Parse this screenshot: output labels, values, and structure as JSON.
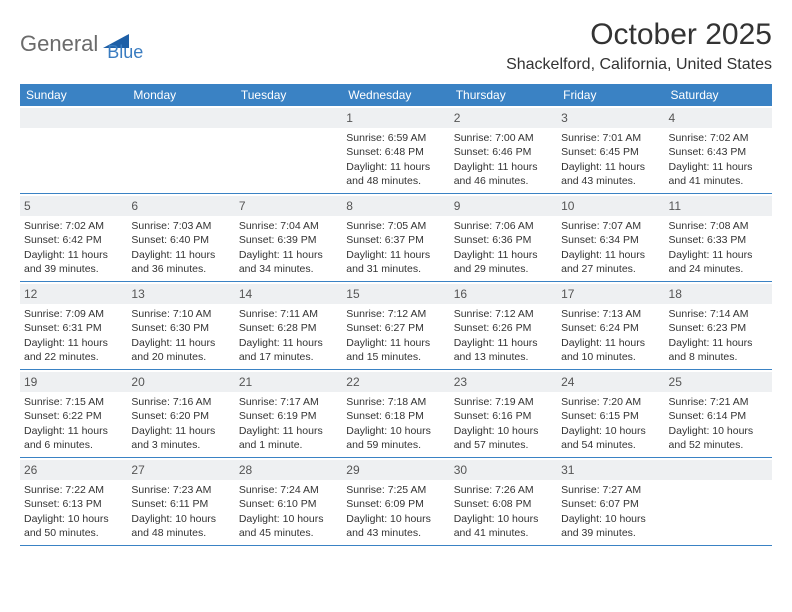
{
  "logo": {
    "text1": "General",
    "text2": "Blue"
  },
  "header": {
    "month_title": "October 2025",
    "location": "Shackelford, California, United States"
  },
  "colors": {
    "header_bg": "#3a82c4",
    "header_fg": "#ffffff",
    "day_num_bg": "#eef0f2",
    "border": "#3a82c4",
    "logo_gray": "#6b6b6b",
    "logo_blue": "#3a7cc0"
  },
  "days_of_week": [
    "Sunday",
    "Monday",
    "Tuesday",
    "Wednesday",
    "Thursday",
    "Friday",
    "Saturday"
  ],
  "weeks": [
    [
      null,
      null,
      null,
      {
        "n": "1",
        "sunrise": "6:59 AM",
        "sunset": "6:48 PM",
        "daylight": "11 hours and 48 minutes."
      },
      {
        "n": "2",
        "sunrise": "7:00 AM",
        "sunset": "6:46 PM",
        "daylight": "11 hours and 46 minutes."
      },
      {
        "n": "3",
        "sunrise": "7:01 AM",
        "sunset": "6:45 PM",
        "daylight": "11 hours and 43 minutes."
      },
      {
        "n": "4",
        "sunrise": "7:02 AM",
        "sunset": "6:43 PM",
        "daylight": "11 hours and 41 minutes."
      }
    ],
    [
      {
        "n": "5",
        "sunrise": "7:02 AM",
        "sunset": "6:42 PM",
        "daylight": "11 hours and 39 minutes."
      },
      {
        "n": "6",
        "sunrise": "7:03 AM",
        "sunset": "6:40 PM",
        "daylight": "11 hours and 36 minutes."
      },
      {
        "n": "7",
        "sunrise": "7:04 AM",
        "sunset": "6:39 PM",
        "daylight": "11 hours and 34 minutes."
      },
      {
        "n": "8",
        "sunrise": "7:05 AM",
        "sunset": "6:37 PM",
        "daylight": "11 hours and 31 minutes."
      },
      {
        "n": "9",
        "sunrise": "7:06 AM",
        "sunset": "6:36 PM",
        "daylight": "11 hours and 29 minutes."
      },
      {
        "n": "10",
        "sunrise": "7:07 AM",
        "sunset": "6:34 PM",
        "daylight": "11 hours and 27 minutes."
      },
      {
        "n": "11",
        "sunrise": "7:08 AM",
        "sunset": "6:33 PM",
        "daylight": "11 hours and 24 minutes."
      }
    ],
    [
      {
        "n": "12",
        "sunrise": "7:09 AM",
        "sunset": "6:31 PM",
        "daylight": "11 hours and 22 minutes."
      },
      {
        "n": "13",
        "sunrise": "7:10 AM",
        "sunset": "6:30 PM",
        "daylight": "11 hours and 20 minutes."
      },
      {
        "n": "14",
        "sunrise": "7:11 AM",
        "sunset": "6:28 PM",
        "daylight": "11 hours and 17 minutes."
      },
      {
        "n": "15",
        "sunrise": "7:12 AM",
        "sunset": "6:27 PM",
        "daylight": "11 hours and 15 minutes."
      },
      {
        "n": "16",
        "sunrise": "7:12 AM",
        "sunset": "6:26 PM",
        "daylight": "11 hours and 13 minutes."
      },
      {
        "n": "17",
        "sunrise": "7:13 AM",
        "sunset": "6:24 PM",
        "daylight": "11 hours and 10 minutes."
      },
      {
        "n": "18",
        "sunrise": "7:14 AM",
        "sunset": "6:23 PM",
        "daylight": "11 hours and 8 minutes."
      }
    ],
    [
      {
        "n": "19",
        "sunrise": "7:15 AM",
        "sunset": "6:22 PM",
        "daylight": "11 hours and 6 minutes."
      },
      {
        "n": "20",
        "sunrise": "7:16 AM",
        "sunset": "6:20 PM",
        "daylight": "11 hours and 3 minutes."
      },
      {
        "n": "21",
        "sunrise": "7:17 AM",
        "sunset": "6:19 PM",
        "daylight": "11 hours and 1 minute."
      },
      {
        "n": "22",
        "sunrise": "7:18 AM",
        "sunset": "6:18 PM",
        "daylight": "10 hours and 59 minutes."
      },
      {
        "n": "23",
        "sunrise": "7:19 AM",
        "sunset": "6:16 PM",
        "daylight": "10 hours and 57 minutes."
      },
      {
        "n": "24",
        "sunrise": "7:20 AM",
        "sunset": "6:15 PM",
        "daylight": "10 hours and 54 minutes."
      },
      {
        "n": "25",
        "sunrise": "7:21 AM",
        "sunset": "6:14 PM",
        "daylight": "10 hours and 52 minutes."
      }
    ],
    [
      {
        "n": "26",
        "sunrise": "7:22 AM",
        "sunset": "6:13 PM",
        "daylight": "10 hours and 50 minutes."
      },
      {
        "n": "27",
        "sunrise": "7:23 AM",
        "sunset": "6:11 PM",
        "daylight": "10 hours and 48 minutes."
      },
      {
        "n": "28",
        "sunrise": "7:24 AM",
        "sunset": "6:10 PM",
        "daylight": "10 hours and 45 minutes."
      },
      {
        "n": "29",
        "sunrise": "7:25 AM",
        "sunset": "6:09 PM",
        "daylight": "10 hours and 43 minutes."
      },
      {
        "n": "30",
        "sunrise": "7:26 AM",
        "sunset": "6:08 PM",
        "daylight": "10 hours and 41 minutes."
      },
      {
        "n": "31",
        "sunrise": "7:27 AM",
        "sunset": "6:07 PM",
        "daylight": "10 hours and 39 minutes."
      },
      null
    ]
  ],
  "labels": {
    "sunrise_prefix": "Sunrise: ",
    "sunset_prefix": "Sunset: ",
    "daylight_prefix": "Daylight: "
  }
}
